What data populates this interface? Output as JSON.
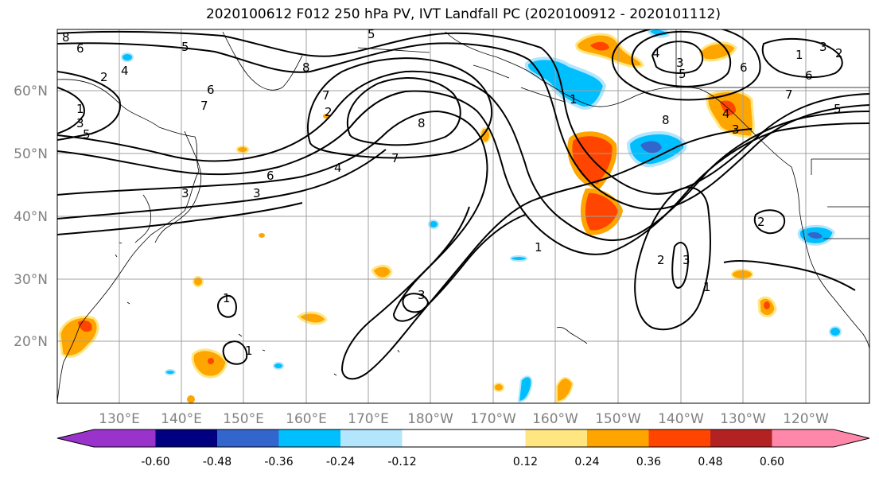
{
  "title": "2020100612 F012 250 hPa PV, IVT Landfall PC (2020100912 - 2020101112)",
  "lat_labels": [
    "20°N",
    "30°N",
    "40°N",
    "50°N",
    "60°N"
  ],
  "lon_labels": [
    "130°E",
    "140°E",
    "150°E",
    "160°E",
    "170°E",
    "180°W",
    "170°W",
    "160°W",
    "150°W",
    "140°W",
    "130°W",
    "120°W"
  ],
  "colorbar": {
    "colors": [
      "#9933cc",
      "#000080",
      "#3366cc",
      "#00bfff",
      "#b3e5fc",
      "#ffffff",
      "#ffffff",
      "#ffe680",
      "#ffa500",
      "#ff4500",
      "#b22222",
      "#ff88aa"
    ],
    "tick_labels": [
      "-0.60",
      "-0.48",
      "-0.36",
      "-0.24",
      "-0.12",
      "0.12",
      "0.24",
      "0.36",
      "0.48",
      "0.60"
    ]
  },
  "contour_labels": [
    "8",
    "6",
    "4",
    "2",
    "1",
    "3",
    "5",
    "5",
    "6",
    "7",
    "8",
    "7",
    "8",
    "6",
    "4",
    "3",
    "5",
    "7",
    "6",
    "5",
    "4",
    "3",
    "2",
    "1",
    "3",
    "8",
    "7",
    "6",
    "5",
    "4",
    "3",
    "2",
    "1",
    "2",
    "3",
    "1",
    "2",
    "1",
    "3",
    "1",
    "3",
    "1"
  ],
  "shading_colors": {
    "neg_light": "#b3e5fc",
    "neg_mid": "#00bfff",
    "neg_dark": "#3366cc",
    "pos_light": "#ffe680",
    "pos_mid": "#ffa500",
    "pos_dark": "#ff4500"
  }
}
